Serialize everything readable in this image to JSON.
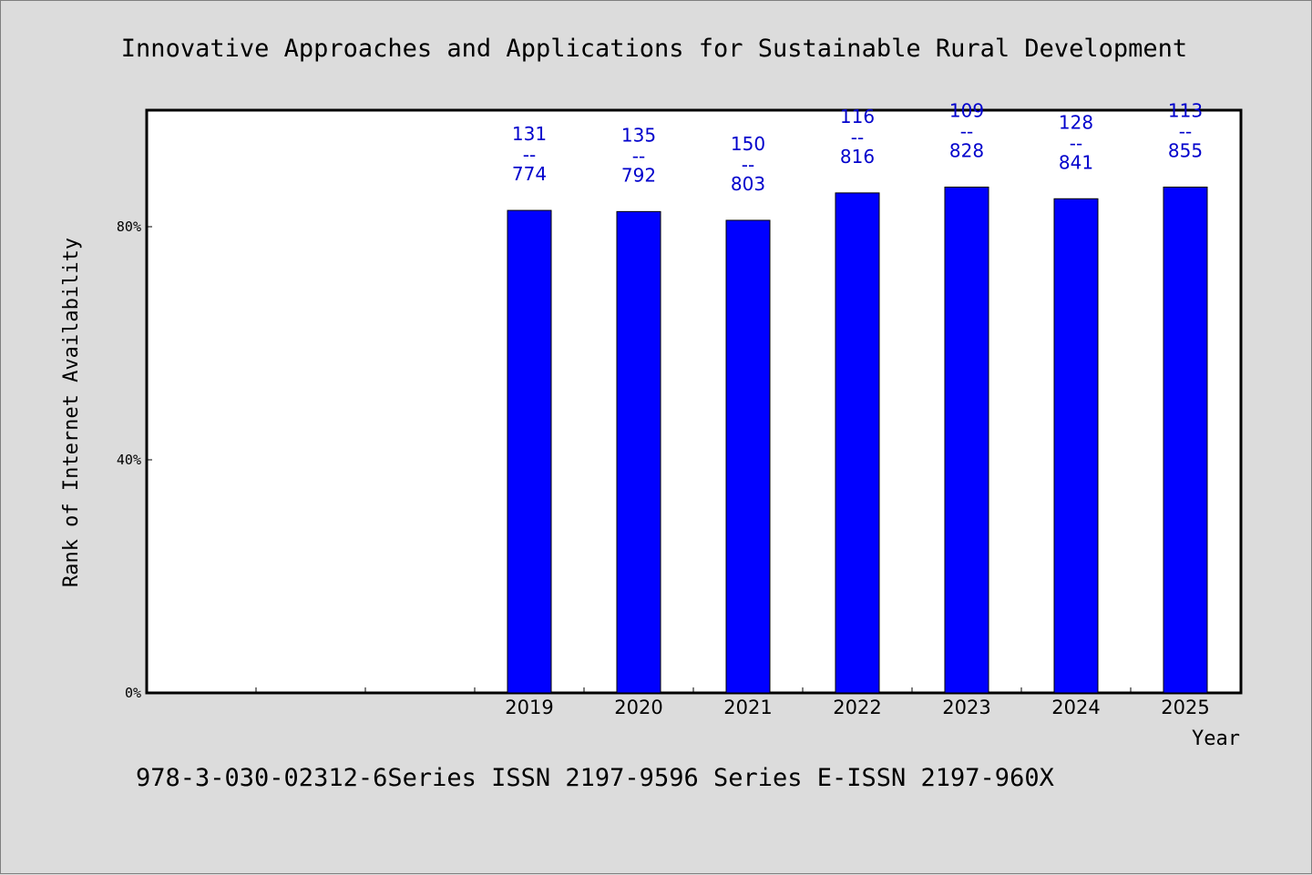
{
  "chart_data": {
    "type": "bar",
    "title": "Innovative Approaches and Applications for Sustainable Rural Development",
    "xlabel": "Year",
    "ylabel": "Rank of Internet Availability",
    "yticks": [
      "0%",
      "40%",
      "80%"
    ],
    "ylim": [
      0,
      100
    ],
    "y_unit": "percent",
    "categories": [
      "2019",
      "2020",
      "2021",
      "2022",
      "2023",
      "2024",
      "2025"
    ],
    "values": [
      82.8,
      82.6,
      81.1,
      85.8,
      86.8,
      84.8,
      86.8
    ],
    "labels": [
      {
        "top": "131",
        "sep": "--",
        "bottom": "774"
      },
      {
        "top": "135",
        "sep": "--",
        "bottom": "792"
      },
      {
        "top": "150",
        "sep": "--",
        "bottom": "803"
      },
      {
        "top": "116",
        "sep": "--",
        "bottom": "816"
      },
      {
        "top": "109",
        "sep": "--",
        "bottom": "828"
      },
      {
        "top": "128",
        "sep": "--",
        "bottom": "841"
      },
      {
        "top": "113",
        "sep": "--",
        "bottom": "855"
      }
    ],
    "bar_color": "#0000ff",
    "label_color": "#0000cc",
    "grid": false,
    "legend": "none"
  },
  "footer": "978-3-030-02312-6Series ISSN 2197-9596 Series E-ISSN 2197-960X"
}
